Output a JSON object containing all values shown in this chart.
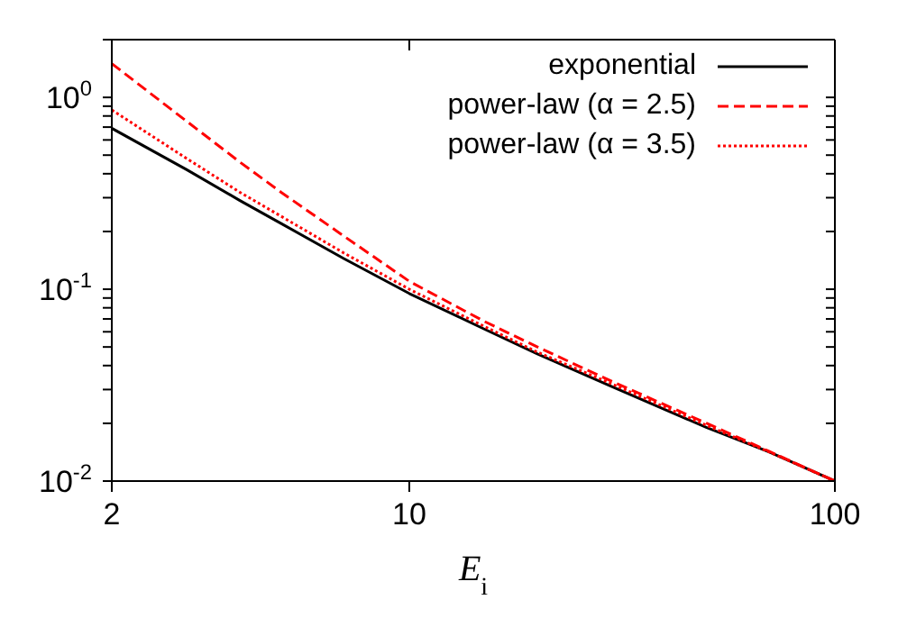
{
  "chart_data": {
    "type": "line",
    "xlabel": "E$_{i}$",
    "log": "xy",
    "x": [
      2,
      3,
      4,
      5,
      7,
      10,
      15,
      20,
      30,
      50,
      70,
      100
    ],
    "series": [
      {
        "name": "exponential",
        "color": "#000000",
        "line_style": "solid",
        "values": [
          0.69,
          0.42,
          0.29,
          0.22,
          0.145,
          0.095,
          0.062,
          0.046,
          0.031,
          0.019,
          0.0142,
          0.01
        ]
      },
      {
        "name": "power-law (α = 2.5)",
        "color": "#ff0000",
        "line_style": "dashed",
        "values": [
          1.5,
          0.75,
          0.46,
          0.32,
          0.19,
          0.11,
          0.068,
          0.05,
          0.033,
          0.02,
          0.0143,
          0.01
        ]
      },
      {
        "name": "power-law (α = 3.5)",
        "color": "#ff0000",
        "line_style": "dotted",
        "values": [
          0.86,
          0.48,
          0.32,
          0.24,
          0.155,
          0.1,
          0.064,
          0.047,
          0.032,
          0.0195,
          0.0142,
          0.01
        ]
      }
    ],
    "xlim": [
      2,
      100
    ],
    "xticks": [
      2,
      10,
      100
    ],
    "ylim": [
      0.01,
      2
    ],
    "yticks": [
      {
        "value": 0.01,
        "label": "10$^{-2}$"
      },
      {
        "value": 0.02,
        "label": null
      },
      {
        "value": 0.03,
        "label": null
      },
      {
        "value": 0.04,
        "label": null
      },
      {
        "value": 0.05,
        "label": null
      },
      {
        "value": 0.06,
        "label": null
      },
      {
        "value": 0.07,
        "label": null
      },
      {
        "value": 0.08,
        "label": null
      },
      {
        "value": 0.09,
        "label": null
      },
      {
        "value": 0.1,
        "label": "10$^{-1}$"
      },
      {
        "value": 0.2,
        "label": null
      },
      {
        "value": 0.3,
        "label": null
      },
      {
        "value": 0.4,
        "label": null
      },
      {
        "value": 0.5,
        "label": null
      },
      {
        "value": 0.6,
        "label": null
      },
      {
        "value": 0.7,
        "label": null
      },
      {
        "value": 0.8,
        "label": null
      },
      {
        "value": 0.9,
        "label": null
      },
      {
        "value": 1,
        "label": "10$^{0}$"
      },
      {
        "value": 2,
        "label": null
      }
    ],
    "grid": false,
    "legend": "top right",
    "marker": "none"
  }
}
